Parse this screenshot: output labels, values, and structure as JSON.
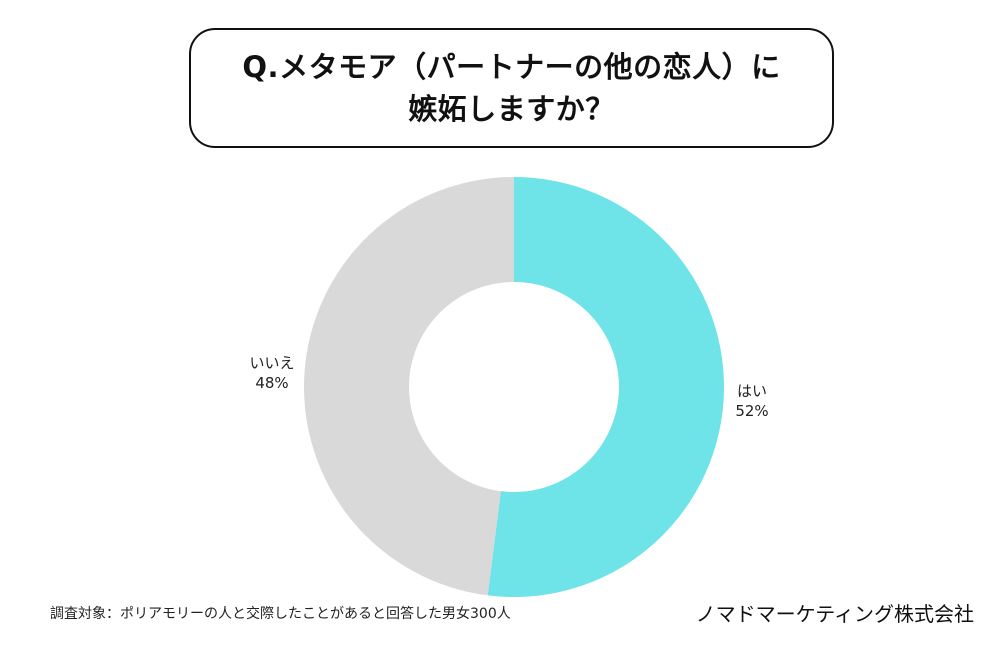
{
  "title": {
    "line1": "Q.メタモア（パートナーの他の恋人）に",
    "line2": "嫉妬しますか？"
  },
  "chart_data": {
    "type": "pie",
    "variant": "donut",
    "slices": [
      {
        "label": "はい",
        "value": 52,
        "value_text": "52%",
        "color": "#6ee3e8"
      },
      {
        "label": "いいえ",
        "value": 48,
        "value_text": "48%",
        "color": "#d9d9d9"
      }
    ],
    "start": "12 o'clock",
    "direction": "clockwise"
  },
  "footnote": "調査対象：ポリアモリーの人と交際したことがあると回答した男女300人",
  "company": "ノマドマーケティング株式会社"
}
